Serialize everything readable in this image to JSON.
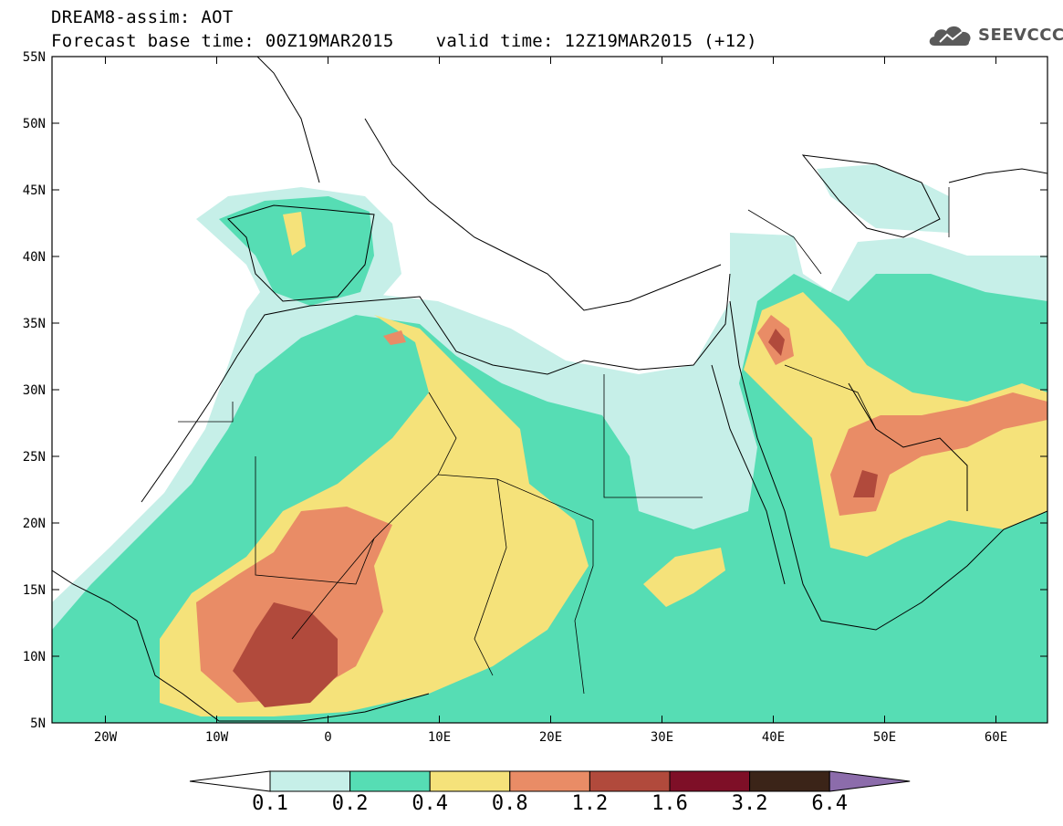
{
  "header": {
    "title": "DREAM8-assim: AOT",
    "base_time": "Forecast base time: 00Z19MAR2015",
    "valid_time": "valid time: 12Z19MAR2015 (+12)"
  },
  "logo": {
    "text": "SEEVCCC",
    "icon": "cloud-icon"
  },
  "map": {
    "lat_labels": [
      "55N",
      "50N",
      "45N",
      "40N",
      "35N",
      "30N",
      "25N",
      "20N",
      "15N",
      "10N",
      "5N"
    ],
    "lon_labels": [
      "20W",
      "10W",
      "0",
      "10E",
      "20E",
      "30E",
      "40E",
      "50E",
      "60E"
    ]
  },
  "legend": {
    "labels": [
      "0.1",
      "0.2",
      "0.4",
      "0.8",
      "1.2",
      "1.6",
      "3.2",
      "6.4"
    ],
    "colors": [
      "#ffffff",
      "#c6efe8",
      "#56ddb4",
      "#f5e27a",
      "#e98c66",
      "#b14a3c",
      "#7e0f27",
      "#3b2418",
      "#8c6cab"
    ]
  }
}
